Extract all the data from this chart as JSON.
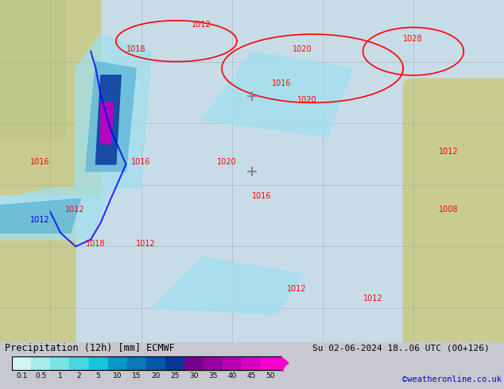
{
  "title_left": "Precipitation (12h) [mm] ECMWF",
  "title_right": "Su 02-06-2024 18..06 UTC (00+126)",
  "credit": "©weatheronline.co.uk",
  "colorbar_values": [
    0.1,
    0.5,
    1,
    2,
    5,
    10,
    15,
    20,
    25,
    30,
    35,
    40,
    45,
    50
  ],
  "colorbar_colors": [
    "#e0f8f8",
    "#b0f0f0",
    "#80e8e8",
    "#50d8e8",
    "#20c8e0",
    "#10a8d0",
    "#1088c0",
    "#1068b0",
    "#1048a0",
    "#800090",
    "#a000a0",
    "#c000b0",
    "#e000c0",
    "#ff00d0"
  ],
  "bg_color": "#c8c8c8",
  "map_bg": "#d0d8e0",
  "land_color": "#d8dca0",
  "figsize": [
    6.34,
    4.9
  ],
  "dpi": 100
}
